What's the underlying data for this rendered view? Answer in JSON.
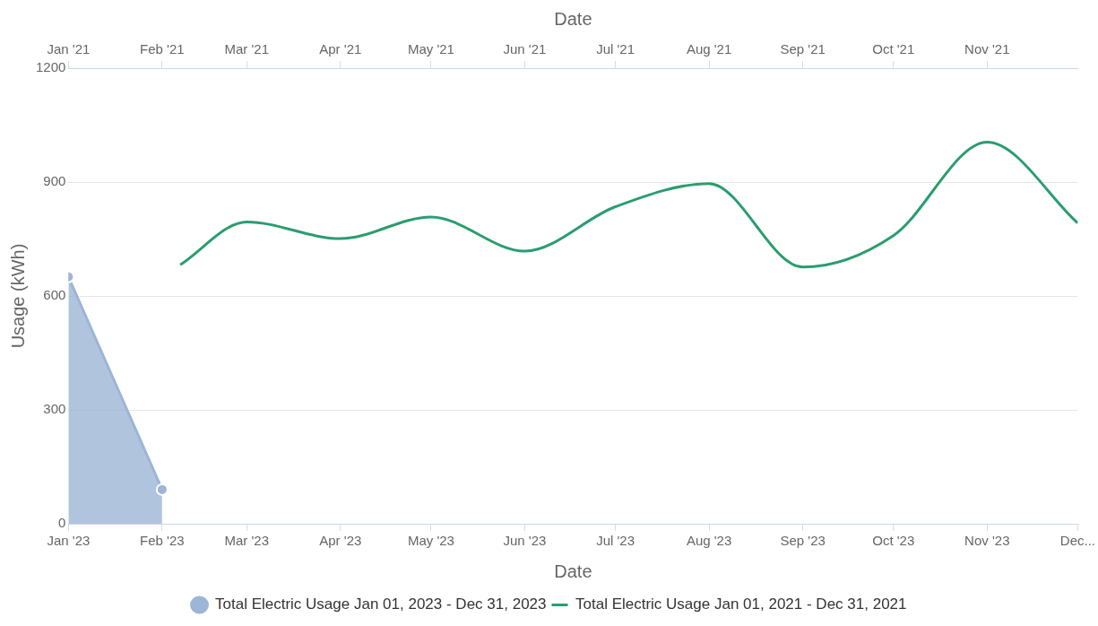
{
  "chart_data": {
    "type": "line",
    "xlabel": "Date",
    "x2label": "Date",
    "ylabel": "Usage (kWh)",
    "xlim": [
      "2023-01-01",
      "2023-12-01"
    ],
    "xticks": [
      {
        "value": "2023-01-01",
        "label": "Jan '23"
      },
      {
        "value": "2023-02-01",
        "label": "Feb '23"
      },
      {
        "value": "2023-03-01",
        "label": "Mar '23"
      },
      {
        "value": "2023-04-01",
        "label": "Apr '23"
      },
      {
        "value": "2023-05-01",
        "label": "May '23"
      },
      {
        "value": "2023-06-01",
        "label": "Jun '23"
      },
      {
        "value": "2023-07-01",
        "label": "Jul '23"
      },
      {
        "value": "2023-08-01",
        "label": "Aug '23"
      },
      {
        "value": "2023-09-01",
        "label": "Sep '23"
      },
      {
        "value": "2023-10-01",
        "label": "Oct '23"
      },
      {
        "value": "2023-11-01",
        "label": "Nov '23"
      },
      {
        "value": "2023-12-01",
        "label": "Dec..."
      }
    ],
    "x2lim": [
      "2021-01-01",
      "2021-12-01"
    ],
    "x2ticks": [
      {
        "value": "2021-01-01",
        "label": "Jan '21"
      },
      {
        "value": "2021-02-01",
        "label": "Feb '21"
      },
      {
        "value": "2021-03-01",
        "label": "Mar '21"
      },
      {
        "value": "2021-04-01",
        "label": "Apr '21"
      },
      {
        "value": "2021-05-01",
        "label": "May '21"
      },
      {
        "value": "2021-06-01",
        "label": "Jun '21"
      },
      {
        "value": "2021-07-01",
        "label": "Jul '21"
      },
      {
        "value": "2021-08-01",
        "label": "Aug '21"
      },
      {
        "value": "2021-09-01",
        "label": "Sep '21"
      },
      {
        "value": "2021-10-01",
        "label": "Oct '21"
      },
      {
        "value": "2021-11-01",
        "label": "Nov '21"
      }
    ],
    "ylim": [
      0,
      1200
    ],
    "yticks": [
      0,
      300,
      600,
      900,
      1200
    ],
    "grid": "y",
    "legend": "bottom",
    "series": [
      {
        "name": "Total Electric Usage Jan 01, 2023 - Dec 31, 2023",
        "type": "area",
        "marker": "circle",
        "color": "#9db5d6",
        "x": [
          "2023-01-01",
          "2023-02-01"
        ],
        "values": [
          650,
          90
        ]
      },
      {
        "name": "Total Electric Usage Jan 01, 2021 - Dec 31, 2021",
        "type": "line",
        "marker": "none",
        "axis": "x2",
        "color": "#2a9d6f",
        "x": [
          "2021-02-07",
          "2021-03-01",
          "2021-04-01",
          "2021-05-01",
          "2021-06-01",
          "2021-07-01",
          "2021-08-01",
          "2021-09-01",
          "2021-10-01",
          "2021-11-01",
          "2021-12-01"
        ],
        "values": [
          682,
          795,
          751,
          808,
          718,
          835,
          896,
          676,
          759,
          1005,
          792
        ]
      }
    ]
  }
}
